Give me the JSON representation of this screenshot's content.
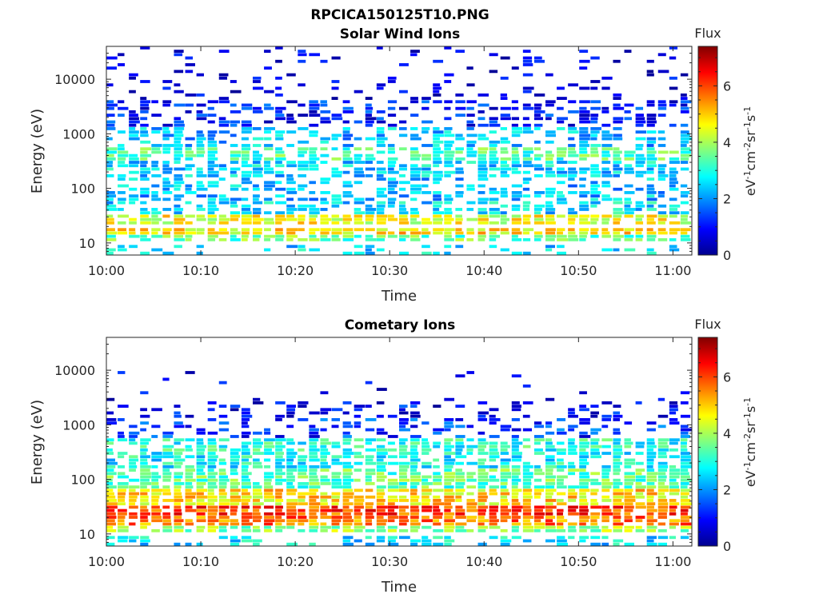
{
  "figure": {
    "title": "RPCICA150125T10.PNG"
  },
  "chart_data": [
    {
      "type": "heatmap",
      "title": "Solar Wind Ions",
      "xlabel": "Time",
      "ylabel": "Energy (eV)",
      "x_ticks": [
        "10:00",
        "10:10",
        "10:20",
        "10:30",
        "10:40",
        "10:50",
        "11:00"
      ],
      "x_range": [
        "10:00",
        "11:02"
      ],
      "y_scale": "log",
      "y_ticks": [
        10,
        100,
        1000,
        10000
      ],
      "y_tick_labels": [
        "10",
        "100",
        "1000",
        "10000"
      ],
      "y_range": [
        6,
        40000
      ],
      "colorbar": {
        "title": "Flux",
        "label": "eV-1cm-2sr-1s-1",
        "label_parts": [
          {
            "text": "eV",
            "sup": false
          },
          {
            "text": "-1",
            "sup": true
          },
          {
            "text": "cm",
            "sup": false
          },
          {
            "text": "-2",
            "sup": true
          },
          {
            "text": "sr",
            "sup": false
          },
          {
            "text": "-1",
            "sup": true
          },
          {
            "text": "s",
            "sup": false
          },
          {
            "text": "-1",
            "sup": true
          }
        ],
        "range": [
          0,
          7.4
        ],
        "ticks": [
          0,
          2,
          4,
          6
        ],
        "tick_labels": [
          "0",
          "2",
          "4",
          "6"
        ],
        "colormap": "jet"
      },
      "grid": false,
      "bands": [
        {
          "energy_range": [
            6,
            9
          ],
          "level": 2.5,
          "coverage": 0.3
        },
        {
          "energy_range": [
            10,
            14
          ],
          "level": 3.5,
          "coverage": 0.85
        },
        {
          "energy_range": [
            15,
            20
          ],
          "level": 4.8,
          "coverage": 0.9
        },
        {
          "energy_range": [
            21,
            32
          ],
          "level": 4.5,
          "coverage": 0.9
        },
        {
          "energy_range": [
            33,
            60
          ],
          "level": 2.6,
          "coverage": 0.55
        },
        {
          "energy_range": [
            60,
            150
          ],
          "level": 2.3,
          "coverage": 0.5
        },
        {
          "energy_range": [
            150,
            300
          ],
          "level": 2.5,
          "coverage": 0.7
        },
        {
          "energy_range": [
            300,
            600
          ],
          "level": 3.3,
          "coverage": 0.8
        },
        {
          "energy_range": [
            600,
            1400
          ],
          "level": 2.3,
          "coverage": 0.55
        },
        {
          "energy_range": [
            1400,
            4000
          ],
          "level": 1.1,
          "coverage": 0.45
        },
        {
          "energy_range": [
            4000,
            40000
          ],
          "level": 0.6,
          "coverage": 0.2
        }
      ]
    },
    {
      "type": "heatmap",
      "title": "Cometary Ions",
      "xlabel": "Time",
      "ylabel": "Energy (eV)",
      "x_ticks": [
        "10:00",
        "10:10",
        "10:20",
        "10:30",
        "10:40",
        "10:50",
        "11:00"
      ],
      "x_range": [
        "10:00",
        "11:02"
      ],
      "y_scale": "log",
      "y_ticks": [
        10,
        100,
        1000,
        10000
      ],
      "y_tick_labels": [
        "10",
        "100",
        "1000",
        "10000"
      ],
      "y_range": [
        6,
        40000
      ],
      "colorbar": {
        "title": "Flux",
        "label": "eV-1cm-2sr-1s-1",
        "label_parts": [
          {
            "text": "eV",
            "sup": false
          },
          {
            "text": "-1",
            "sup": true
          },
          {
            "text": "cm",
            "sup": false
          },
          {
            "text": "-2",
            "sup": true
          },
          {
            "text": "sr",
            "sup": false
          },
          {
            "text": "-1",
            "sup": true
          },
          {
            "text": "s",
            "sup": false
          },
          {
            "text": "-1",
            "sup": true
          }
        ],
        "range": [
          0,
          7.4
        ],
        "ticks": [
          0,
          2,
          4,
          6
        ],
        "tick_labels": [
          "0",
          "2",
          "4",
          "6"
        ],
        "colormap": "jet"
      },
      "grid": false,
      "bands": [
        {
          "energy_range": [
            6,
            9
          ],
          "level": 2.6,
          "coverage": 0.4
        },
        {
          "energy_range": [
            10,
            14
          ],
          "level": 3.8,
          "coverage": 0.85
        },
        {
          "energy_range": [
            15,
            22
          ],
          "level": 5.6,
          "coverage": 0.97
        },
        {
          "energy_range": [
            22,
            35
          ],
          "level": 6.0,
          "coverage": 0.97
        },
        {
          "energy_range": [
            35,
            70
          ],
          "level": 4.8,
          "coverage": 0.95
        },
        {
          "energy_range": [
            70,
            150
          ],
          "level": 3.4,
          "coverage": 0.85
        },
        {
          "energy_range": [
            150,
            320
          ],
          "level": 2.8,
          "coverage": 0.75
        },
        {
          "energy_range": [
            320,
            600
          ],
          "level": 3.0,
          "coverage": 0.8
        },
        {
          "energy_range": [
            600,
            1400
          ],
          "level": 1.3,
          "coverage": 0.35
        },
        {
          "energy_range": [
            1400,
            3000
          ],
          "level": 0.9,
          "coverage": 0.3
        },
        {
          "energy_range": [
            3000,
            10000
          ],
          "level": 0.6,
          "coverage": 0.05
        }
      ]
    }
  ]
}
